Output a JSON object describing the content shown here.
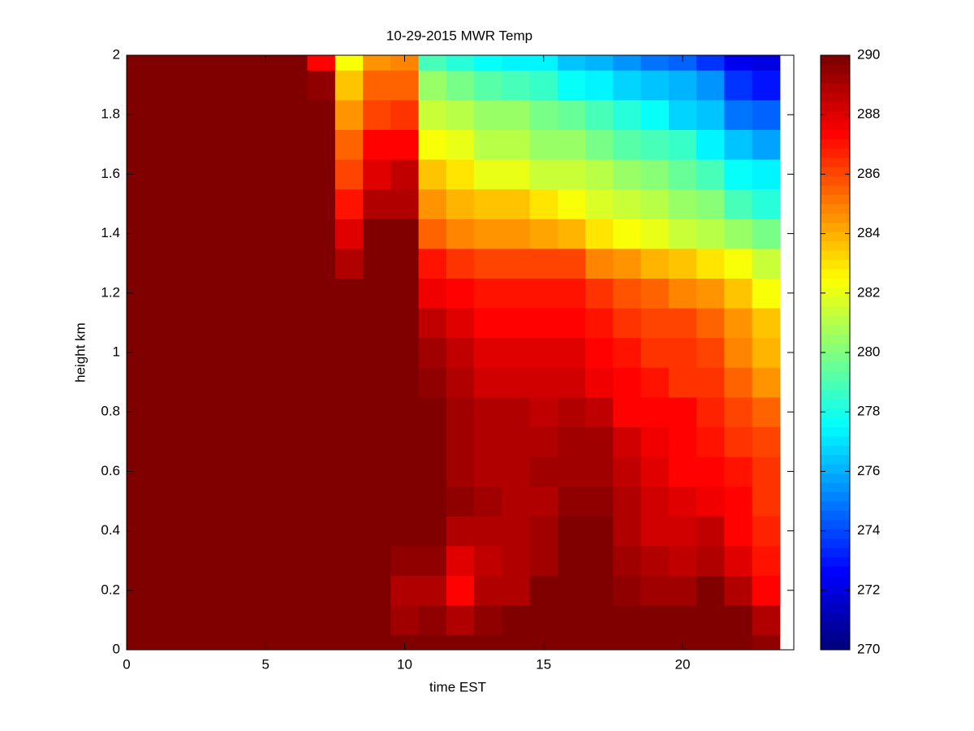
{
  "chart_data": {
    "type": "heatmap",
    "title": "10-29-2015 MWR Temp",
    "x_label": "time EST",
    "y_label": "height km",
    "colormap": "jet",
    "x": [
      0,
      1,
      2,
      3,
      4,
      5,
      6,
      7,
      8,
      9,
      10,
      11,
      12,
      13,
      14,
      15,
      16,
      17,
      18,
      19,
      20,
      21,
      22,
      23
    ],
    "y": [
      0,
      0.1,
      0.2,
      0.3,
      0.4,
      0.5,
      0.6,
      0.7,
      0.8,
      0.9,
      1,
      1.1,
      1.2,
      1.3,
      1.4,
      1.5,
      1.6,
      1.7,
      1.8,
      1.9,
      2
    ],
    "z": [
      [
        290,
        290,
        290,
        290,
        290,
        290,
        290,
        290,
        290,
        290,
        290,
        290,
        290,
        290,
        290,
        290,
        290,
        290,
        290,
        290,
        290,
        290,
        290,
        289.5
      ],
      [
        290,
        290,
        290,
        290,
        290,
        290,
        290,
        290,
        290,
        290,
        289.3,
        289.5,
        288.8,
        289.5,
        289.7,
        289.7,
        289.7,
        289.7,
        289.7,
        289.7,
        289.8,
        289.8,
        289.8,
        288.8
      ],
      [
        290,
        290,
        290,
        290,
        290,
        290,
        290,
        290,
        290,
        289.7,
        288.8,
        288.8,
        287.5,
        288.8,
        289,
        289.7,
        289.7,
        289.7,
        289.5,
        289.3,
        289.3,
        289.7,
        288.8,
        287.5
      ],
      [
        290,
        290,
        290,
        290,
        290,
        290,
        290,
        290,
        290,
        290,
        289.5,
        289.5,
        288,
        288.5,
        289,
        289.2,
        290,
        290,
        289.3,
        288.8,
        288.5,
        289,
        288,
        287
      ],
      [
        290,
        290,
        290,
        290,
        290,
        290,
        290,
        290,
        290,
        290,
        290,
        290,
        289,
        289,
        289,
        289.3,
        290,
        290,
        288.8,
        288.2,
        288.2,
        288.5,
        287.5,
        286.8
      ],
      [
        290,
        290,
        290,
        290,
        290,
        290,
        290,
        290,
        290,
        290,
        290,
        290,
        289.4,
        289.2,
        288.8,
        288.8,
        289.5,
        289.5,
        288.8,
        288.2,
        288,
        287.8,
        287.3,
        286.5
      ],
      [
        290,
        290,
        290,
        290,
        290,
        290,
        290,
        290,
        290,
        290,
        290,
        290,
        289.2,
        288.8,
        288.8,
        289.3,
        289.3,
        289.3,
        288.5,
        288,
        287.5,
        287.5,
        287,
        286.3
      ],
      [
        290,
        290,
        290,
        290,
        290,
        290,
        290,
        290,
        290,
        290,
        290,
        290,
        289.3,
        289,
        288.8,
        289,
        289.3,
        289.3,
        288.3,
        287.8,
        287.5,
        287,
        286.5,
        286
      ],
      [
        290,
        290,
        290,
        290,
        290,
        290,
        290,
        290,
        290,
        290,
        290,
        290,
        289.2,
        288.8,
        288.8,
        288.5,
        289,
        288.5,
        287.5,
        287.5,
        287.3,
        286.8,
        286,
        285.5
      ],
      [
        290,
        290,
        290,
        290,
        290,
        290,
        290,
        290,
        290,
        290,
        290,
        289.5,
        288.8,
        288.2,
        288.3,
        288.2,
        288.3,
        287.8,
        287.3,
        287,
        286.5,
        286.3,
        285.5,
        284.5
      ],
      [
        290,
        290,
        290,
        290,
        290,
        290,
        290,
        290,
        290,
        290,
        290,
        289.2,
        288.6,
        288,
        288,
        288,
        288,
        287.5,
        287,
        286.5,
        286.3,
        286,
        285,
        284
      ],
      [
        290,
        290,
        290,
        290,
        290,
        290,
        290,
        290,
        290,
        290,
        290,
        288.5,
        288,
        287.5,
        287.5,
        287.5,
        287.5,
        287,
        286.5,
        286.2,
        286,
        285.5,
        284.5,
        283.5
      ],
      [
        290,
        290,
        290,
        290,
        290,
        290,
        290,
        290,
        290,
        290,
        290,
        287.8,
        287.5,
        287,
        287,
        287,
        287,
        286.3,
        285.7,
        285.5,
        285,
        284.5,
        283.5,
        282.5
      ],
      [
        290,
        290,
        290,
        290,
        290,
        290,
        290,
        290,
        289,
        290,
        290,
        287,
        286.3,
        286,
        286,
        286,
        286,
        285,
        284.5,
        284,
        283.5,
        283,
        282.3,
        281.5
      ],
      [
        290,
        290,
        290,
        290,
        290,
        290,
        290,
        290,
        288,
        290,
        290,
        285.5,
        285,
        284.5,
        284.5,
        284.3,
        284,
        283,
        282.5,
        282,
        281.5,
        281.2,
        280.5,
        280
      ],
      [
        290,
        290,
        290,
        290,
        290,
        290,
        290,
        290,
        287,
        289,
        289,
        284.5,
        284,
        283.5,
        283.5,
        283,
        282.5,
        281.8,
        281.5,
        281,
        280.5,
        280.3,
        279,
        278.3
      ],
      [
        290,
        290,
        290,
        290,
        290,
        290,
        290,
        290,
        286,
        288,
        288.5,
        283.5,
        283,
        282,
        282,
        281.5,
        281.3,
        281,
        280.5,
        280.3,
        279.5,
        279,
        277.8,
        277.3
      ],
      [
        290,
        290,
        290,
        290,
        290,
        290,
        290,
        290,
        285.5,
        287.3,
        287.5,
        282.3,
        282,
        281,
        281,
        280.5,
        280.5,
        280,
        279.3,
        279,
        278.5,
        277.5,
        276.5,
        275.8
      ],
      [
        290,
        290,
        290,
        290,
        290,
        290,
        290,
        290,
        284.5,
        286,
        286.3,
        281.5,
        281,
        280.5,
        280.5,
        280,
        279.5,
        279,
        278.3,
        277.8,
        276.8,
        276.3,
        275,
        274.5
      ],
      [
        290,
        290,
        290,
        290,
        290,
        290,
        290,
        289.5,
        283.5,
        285.5,
        285.5,
        280.5,
        280,
        279.2,
        279,
        278.5,
        277.8,
        277.5,
        276.8,
        276.5,
        276,
        275.5,
        273.5,
        273
      ],
      [
        290,
        290,
        290,
        290,
        290,
        290,
        290,
        287.5,
        282.5,
        284.5,
        285,
        279,
        278.3,
        277.8,
        277.5,
        277.2,
        276.5,
        276,
        275.5,
        275,
        274.5,
        273.5,
        272.3,
        272
      ]
    ],
    "xlim": [
      0,
      24
    ],
    "xticks": [
      0,
      5,
      10,
      15,
      20
    ],
    "ylim": [
      0,
      2
    ],
    "yticks": [
      0,
      0.2,
      0.4,
      0.6,
      0.8,
      1,
      1.2,
      1.4,
      1.6,
      1.8,
      2
    ],
    "clim": [
      270,
      290
    ],
    "cticks": [
      270,
      272,
      274,
      276,
      278,
      280,
      282,
      284,
      286,
      288,
      290
    ]
  }
}
